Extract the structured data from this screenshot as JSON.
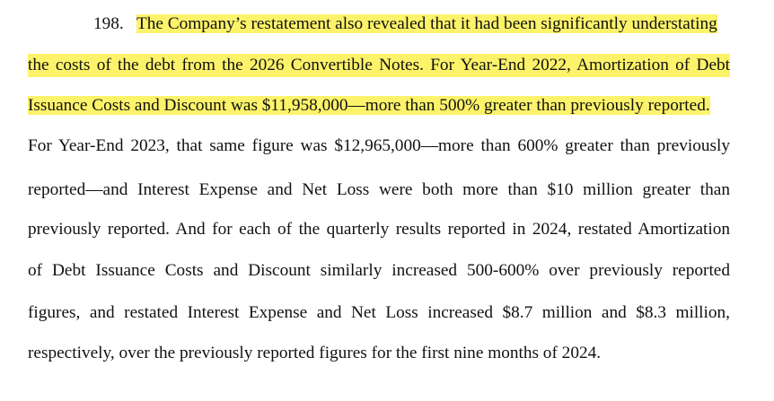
{
  "paragraph": {
    "number": "198.",
    "highlight_color": "#fdf36a",
    "lines": [
      "The Company’s restatement also revealed that it had been significantly understating",
      "the costs of the debt from the 2026 Convertible Notes. For Year-End 2022, Amortization of Debt",
      "Issuance Costs and Discount was $11,958,000—more than 500% greater than previously reported.",
      "For Year-End 2023, that same figure was $12,965,000—more than 600% greater than previously",
      "reported—and Interest Expense and Net Loss were both more than $10 million greater than",
      "previously reported.  And for each of the quarterly results reported in 2024, restated Amortization",
      "of Debt Issuance Costs and Discount similarly increased 500-600% over previously reported",
      "figures, and restated Interest Expense and Net Loss increased $8.7 million and $8.3 million,",
      "respectively, over the previously reported figures for the first nine months of 2024."
    ]
  }
}
